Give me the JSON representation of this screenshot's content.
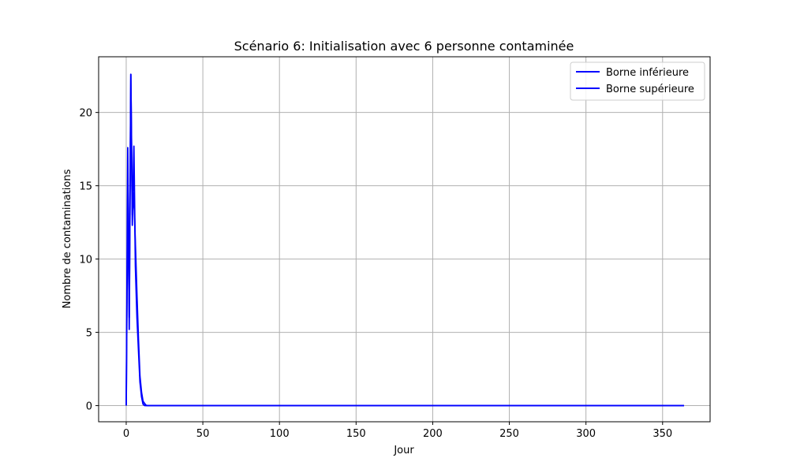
{
  "chart_data": {
    "type": "line",
    "title": "Scénario 6: Initialisation avec 6 personne contaminée",
    "xlabel": "Jour",
    "ylabel": "Nombre de contaminations",
    "xlim": [
      -18,
      381
    ],
    "ylim": [
      -1.1,
      23.8
    ],
    "xticks": [
      0,
      50,
      100,
      150,
      200,
      250,
      300,
      350
    ],
    "yticks": [
      0,
      5,
      10,
      15,
      20
    ],
    "grid": true,
    "legend_position": "top-right",
    "series": [
      {
        "name": "Borne inférieure",
        "color": "#0000ff",
        "x": [
          0,
          1,
          2,
          3,
          4,
          5,
          6,
          7,
          8,
          9,
          10,
          11,
          12,
          13,
          14,
          15,
          364
        ],
        "y": [
          0,
          17.6,
          5.2,
          22.6,
          12.3,
          17.7,
          9.5,
          6.0,
          3.8,
          1.6,
          0.6,
          0.1,
          0.0,
          0,
          0,
          0,
          0
        ]
      },
      {
        "name": "Borne supérieure",
        "color": "#0000ff",
        "x": [
          0,
          1,
          2,
          3,
          4,
          5,
          6,
          7,
          8,
          9,
          10,
          11,
          12,
          13,
          14,
          15,
          364
        ],
        "y": [
          0,
          14.5,
          6.0,
          22.6,
          13.0,
          14.5,
          11.0,
          7.5,
          4.5,
          2.0,
          0.9,
          0.3,
          0.15,
          0.02,
          0,
          0,
          0
        ]
      }
    ]
  }
}
